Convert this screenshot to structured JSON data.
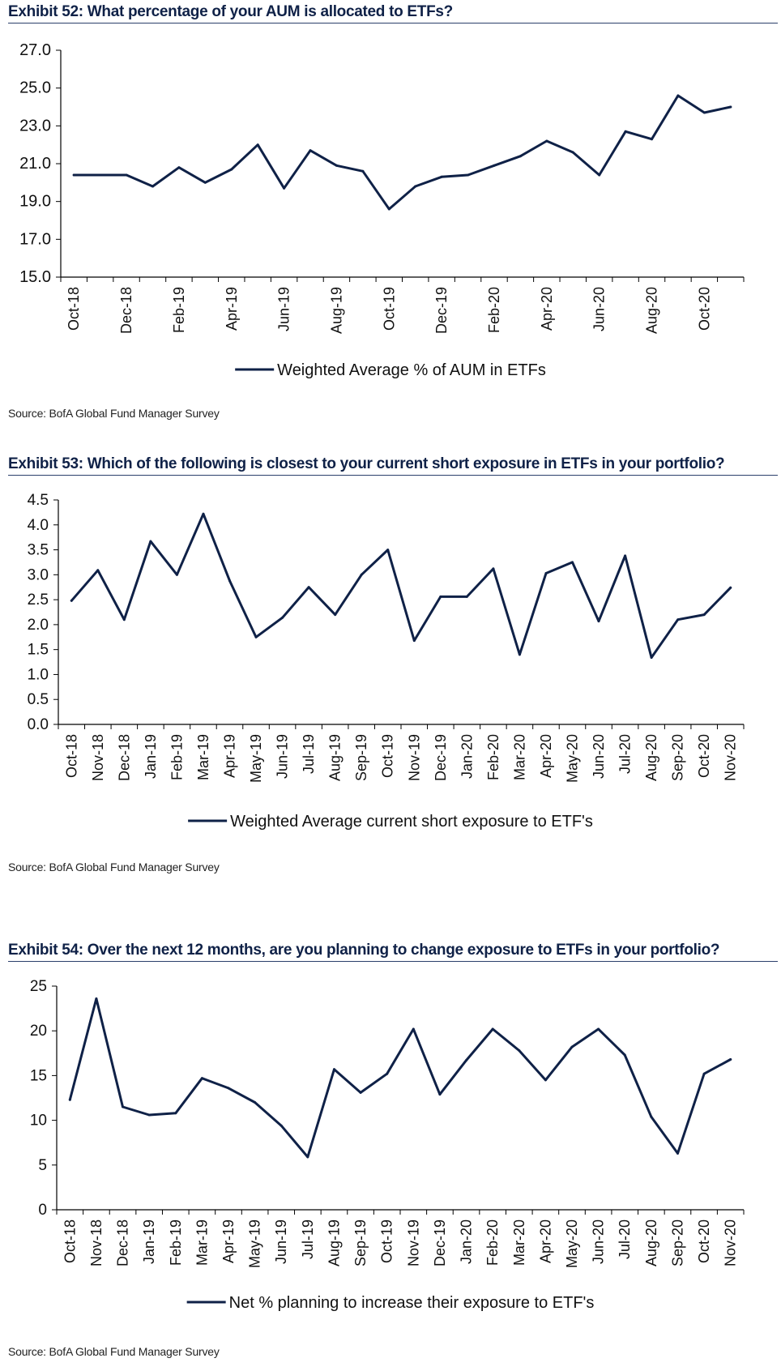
{
  "chart_data": [
    {
      "type": "line",
      "title": "Exhibit 52: What percentage of your AUM is allocated to ETFs?",
      "source": "Source: BofA Global Fund Manager Survey",
      "x": [
        "Oct-18",
        "Nov-18",
        "Dec-18",
        "Jan-19",
        "Feb-19",
        "Mar-19",
        "Apr-19",
        "May-19",
        "Jun-19",
        "Jul-19",
        "Aug-19",
        "Sep-19",
        "Oct-19",
        "Nov-19",
        "Dec-19",
        "Jan-20",
        "Feb-20",
        "Mar-20",
        "Apr-20",
        "May-20",
        "Jun-20",
        "Jul-20",
        "Aug-20",
        "Sep-20",
        "Oct-20",
        "Nov-20"
      ],
      "x_tick_labels": [
        "Oct-18",
        "Dec-18",
        "Feb-19",
        "Apr-19",
        "Jun-19",
        "Aug-19",
        "Oct-19",
        "Dec-19",
        "Feb-20",
        "Apr-20",
        "Jun-20",
        "Aug-20",
        "Oct-20"
      ],
      "x_tick_every": 2,
      "series": [
        {
          "name": "Weighted Average % of AUM in ETFs",
          "values": [
            20.4,
            20.4,
            20.4,
            19.8,
            20.8,
            20.0,
            20.7,
            22.0,
            19.7,
            21.7,
            20.9,
            20.6,
            18.6,
            19.8,
            20.3,
            20.4,
            20.9,
            21.4,
            22.2,
            21.6,
            20.4,
            22.7,
            22.3,
            24.6,
            23.7,
            24.0
          ]
        }
      ],
      "ylim": [
        15.0,
        27.0
      ],
      "yticks": [
        15.0,
        17.0,
        19.0,
        21.0,
        23.0,
        25.0,
        27.0
      ],
      "ytick_decimals": 1,
      "legend_position": "bottom-center",
      "grid": false,
      "color": "#0f2147"
    },
    {
      "type": "line",
      "title": "Exhibit 53: Which of the following is closest to your current short exposure in ETFs in your portfolio?",
      "source": "Source: BofA Global Fund Manager Survey",
      "x": [
        "Oct-18",
        "Nov-18",
        "Dec-18",
        "Jan-19",
        "Feb-19",
        "Mar-19",
        "Apr-19",
        "May-19",
        "Jun-19",
        "Jul-19",
        "Aug-19",
        "Sep-19",
        "Oct-19",
        "Nov-19",
        "Dec-19",
        "Jan-20",
        "Feb-20",
        "Mar-20",
        "Apr-20",
        "May-20",
        "Jun-20",
        "Jul-20",
        "Aug-20",
        "Sep-20",
        "Oct-20",
        "Nov-20"
      ],
      "x_tick_labels": [
        "Oct-18",
        "Nov-18",
        "Dec-18",
        "Jan-19",
        "Feb-19",
        "Mar-19",
        "Apr-19",
        "May-19",
        "Jun-19",
        "Jul-19",
        "Aug-19",
        "Sep-19",
        "Oct-19",
        "Nov-19",
        "Dec-19",
        "Jan-20",
        "Feb-20",
        "Mar-20",
        "Apr-20",
        "May-20",
        "Jun-20",
        "Jul-20",
        "Aug-20",
        "Sep-20",
        "Oct-20",
        "Nov-20"
      ],
      "x_tick_every": 1,
      "series": [
        {
          "name": "Weighted Average current short exposure to ETF's",
          "values": [
            2.48,
            3.09,
            2.1,
            3.67,
            3.0,
            4.22,
            2.88,
            1.75,
            2.14,
            2.75,
            2.2,
            3.0,
            3.5,
            1.68,
            2.56,
            2.56,
            3.12,
            1.4,
            3.03,
            3.25,
            2.07,
            3.38,
            1.34,
            2.1,
            2.2,
            2.74
          ]
        }
      ],
      "ylim": [
        0.0,
        4.5
      ],
      "yticks": [
        0.0,
        0.5,
        1.0,
        1.5,
        2.0,
        2.5,
        3.0,
        3.5,
        4.0,
        4.5
      ],
      "ytick_decimals": 1,
      "legend_position": "bottom-center",
      "grid": false,
      "color": "#0f2147"
    },
    {
      "type": "line",
      "title": "Exhibit 54: Over the next 12 months, are you planning to change exposure to ETFs in your portfolio?",
      "source": "Source: BofA Global Fund Manager Survey",
      "x": [
        "Oct-18",
        "Nov-18",
        "Dec-18",
        "Jan-19",
        "Feb-19",
        "Mar-19",
        "Apr-19",
        "May-19",
        "Jun-19",
        "Jul-19",
        "Aug-19",
        "Sep-19",
        "Oct-19",
        "Nov-19",
        "Dec-19",
        "Jan-20",
        "Feb-20",
        "Mar-20",
        "Apr-20",
        "May-20",
        "Jun-20",
        "Jul-20",
        "Aug-20",
        "Sep-20",
        "Oct-20",
        "Nov-20"
      ],
      "x_tick_labels": [
        "Oct-18",
        "Nov-18",
        "Dec-18",
        "Jan-19",
        "Feb-19",
        "Mar-19",
        "Apr-19",
        "May-19",
        "Jun-19",
        "Jul-19",
        "Aug-19",
        "Sep-19",
        "Oct-19",
        "Nov-19",
        "Dec-19",
        "Jan-20",
        "Feb-20",
        "Mar-20",
        "Apr-20",
        "May-20",
        "Jun-20",
        "Jul-20",
        "Aug-20",
        "Sep-20",
        "Oct-20",
        "Nov-20"
      ],
      "x_tick_every": 1,
      "series": [
        {
          "name": "Net % planning to increase their exposure to ETF's",
          "values": [
            12.3,
            23.6,
            11.5,
            10.6,
            10.8,
            14.7,
            13.6,
            12.0,
            9.4,
            5.9,
            15.7,
            13.1,
            15.2,
            20.2,
            12.9,
            16.7,
            20.2,
            17.8,
            14.5,
            18.2,
            20.2,
            17.3,
            10.4,
            6.3,
            15.2,
            16.8
          ]
        }
      ],
      "ylim": [
        0,
        25
      ],
      "yticks": [
        0,
        5,
        10,
        15,
        20,
        25
      ],
      "ytick_decimals": 0,
      "legend_position": "bottom-center",
      "grid": false,
      "color": "#0f2147"
    }
  ]
}
